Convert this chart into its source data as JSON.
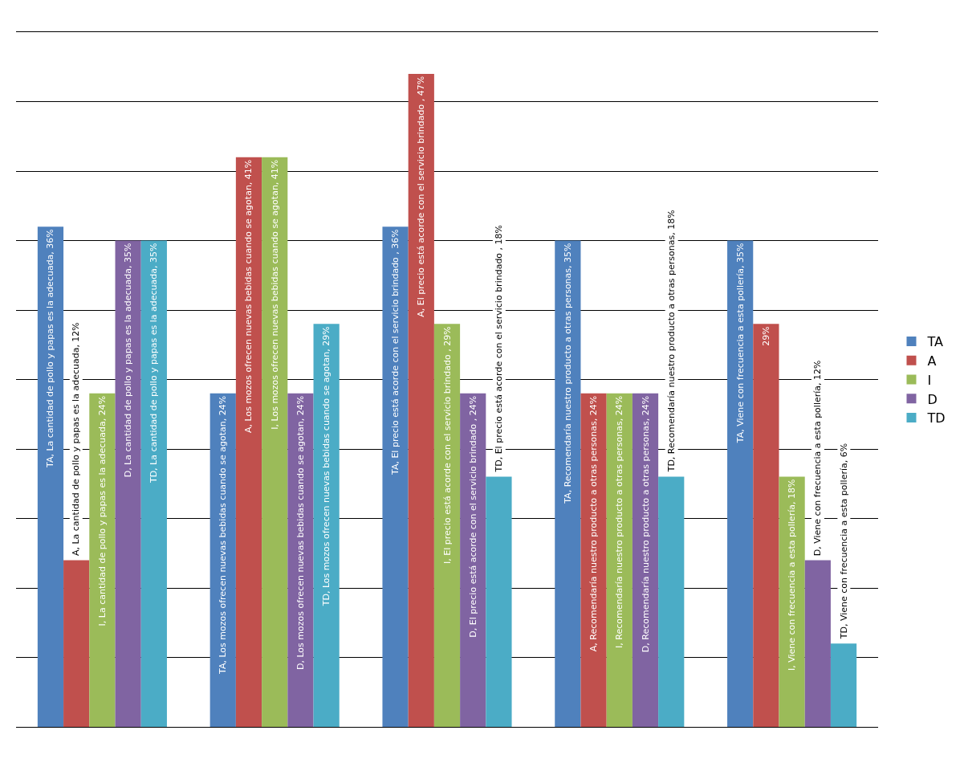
{
  "chart_data": {
    "type": "bar",
    "categories": [
      null,
      null,
      null,
      null,
      null
    ],
    "series": [
      {
        "name": "TA",
        "color": "#4f81bd",
        "values": [
          36,
          24,
          36,
          35,
          35
        ],
        "value_labels": [
          "TA, La cantidad de pollo y papas es la adecuada, 36%",
          "TA, Los mozos ofrecen nuevas bebidas cuando se agotan, 24%",
          "TA, El precio está acorde con el servicio brindado , 36%",
          "TA, Recomendaría nuestro producto a otras personas, 35%",
          "TA, Viene con frecuencia a esta pollería, 35%"
        ]
      },
      {
        "name": "A",
        "color": "#c0504d",
        "values": [
          12,
          41,
          47,
          24,
          29
        ],
        "value_labels": [
          "A, La cantidad de pollo y papas es la adecuada, 12%",
          "A, Los mozos ofrecen nuevas bebidas cuando se agotan, 41%",
          "A, El precio está acorde con el servicio brindado , 47%",
          "A, Recomendaría nuestro producto a otras personas, 24%",
          "29%"
        ]
      },
      {
        "name": "I",
        "color": "#9bbb59",
        "values": [
          24,
          41,
          29,
          24,
          18
        ],
        "value_labels": [
          "I, La cantidad de pollo y papas es la adecuada, 24%",
          "I, Los mozos ofrecen nuevas bebidas cuando se agotan, 41%",
          "I, El precio está acorde con el servicio brindado , 29%",
          "I, Recomendaría nuestro producto a otras personas, 24%",
          "I, Viene con frecuencia a esta pollería, 18%"
        ]
      },
      {
        "name": "D",
        "color": "#8064a2",
        "values": [
          35,
          24,
          24,
          24,
          12
        ],
        "value_labels": [
          "D, La cantidad de pollo y papas es la adecuada, 35%",
          "D, Los mozos ofrecen nuevas bebidas cuando se agotan, 24%",
          "D, El precio está acorde con el servicio brindado , 24%",
          "D, Recomendaría nuestro producto a otras personas, 24%",
          "D, Viene con frecuencia a esta pollería, 12%"
        ]
      },
      {
        "name": "TD",
        "color": "#4bacc6",
        "values": [
          35,
          29,
          18,
          18,
          6
        ],
        "value_labels": [
          "TD, La cantidad de pollo y papas es la adecuada, 35%",
          "TD, Los mozos ofrecen nuevas bebidas cuando se agotan, 29%",
          "TD, El precio está acorde con el servicio brindado , 18%",
          "TD, Recomendaría nuestro producto a otras personas, 18%",
          "TD, Viene con frecuencia a esta pollería, 6%"
        ]
      }
    ],
    "ylim": [
      0,
      50
    ],
    "yticks": [
      {
        "value": 0,
        "label": null
      },
      {
        "value": 5,
        "label": null
      },
      {
        "value": 10,
        "label": null
      },
      {
        "value": 15,
        "label": null
      },
      {
        "value": 20,
        "label": null
      },
      {
        "value": 25,
        "label": null
      },
      {
        "value": 30,
        "label": null
      },
      {
        "value": 35,
        "label": null
      },
      {
        "value": 40,
        "label": null
      },
      {
        "value": 45,
        "label": null
      },
      {
        "value": 50,
        "label": null
      }
    ],
    "grid": "y",
    "legend": "right"
  }
}
